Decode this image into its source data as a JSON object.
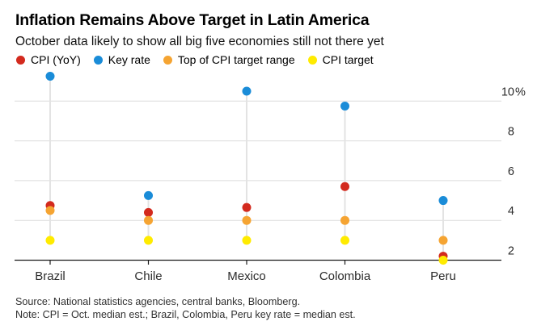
{
  "header": {
    "title": "Inflation Remains Above Target in Latin America",
    "subtitle": "October data likely to show all big five economies still not there yet"
  },
  "legend": {
    "items": [
      {
        "label": "CPI (YoY)",
        "color": "#d32a1e"
      },
      {
        "label": "Key rate",
        "color": "#1a8cd8"
      },
      {
        "label": "Top of CPI target range",
        "color": "#f5a432"
      },
      {
        "label": "CPI target",
        "color": "#ffeb00"
      }
    ]
  },
  "chart_data": {
    "type": "scatter",
    "categories": [
      "Brazil",
      "Chile",
      "Mexico",
      "Colombia",
      "Peru"
    ],
    "series": [
      {
        "name": "CPI (YoY)",
        "color": "#d32a1e",
        "values": [
          4.75,
          4.4,
          4.65,
          5.7,
          2.2
        ]
      },
      {
        "name": "Key rate",
        "color": "#1a8cd8",
        "values": [
          11.25,
          5.25,
          10.5,
          9.75,
          5.0
        ]
      },
      {
        "name": "Top of CPI target range",
        "color": "#f5a432",
        "values": [
          4.5,
          4.0,
          4.0,
          4.0,
          3.0
        ]
      },
      {
        "name": "CPI target",
        "color": "#ffeb00",
        "values": [
          3.0,
          3.0,
          3.0,
          3.0,
          2.0
        ]
      }
    ],
    "y_axis": {
      "ticks": [
        2,
        4,
        6,
        8,
        10
      ],
      "tick_labels": [
        "2",
        "4",
        "6",
        "8",
        "10"
      ],
      "unit_suffix_on_top_tick": "%",
      "baseline_value": 2,
      "range": [
        2,
        11.6
      ]
    },
    "grid": true,
    "legend_position": "top",
    "connector_lines": true,
    "grid_color": "#dcdcdc",
    "connector_color": "#e3e3e3",
    "axis_color": "#1a1a1a",
    "label_color": "#2b2b2b"
  },
  "footer": {
    "source": "Source: National statistics agencies, central banks, Bloomberg.",
    "note": "Note: CPI = Oct. median est.; Brazil, Colombia, Peru key rate = median est."
  }
}
